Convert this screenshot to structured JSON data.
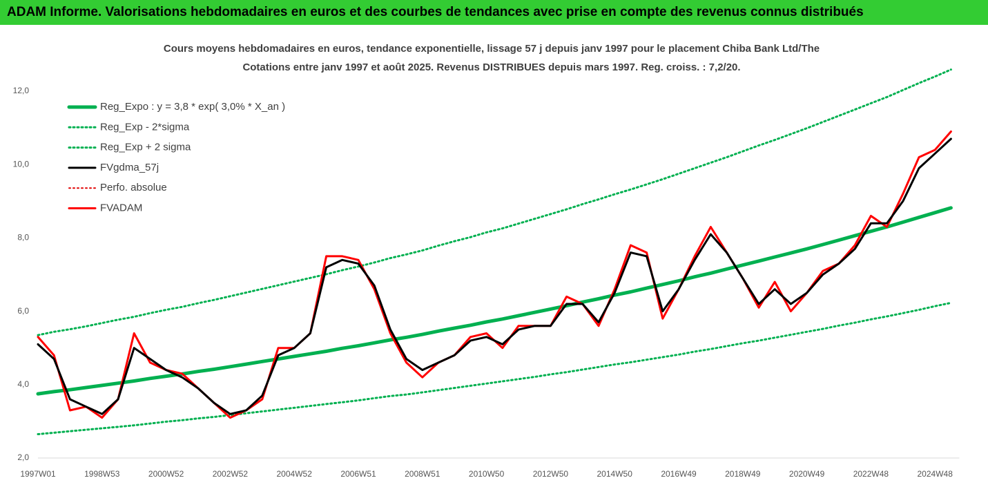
{
  "header": {
    "title": "ADAM Informe. Valorisations hebdomadaires en euros et des courbes de tendances avec prise en compte des revenus connus distribués"
  },
  "chart_data": {
    "type": "line",
    "title": "Cours moyens hebdomadaires en euros, tendance exponentielle, lissage 57 j depuis janv 1997 pour le placement Chiba Bank Ltd/The",
    "subtitle": "Cotations entre janv 1997 et août 2025.  Revenus DISTRIBUES depuis mars 1997. Reg. croiss. : 7,2/20.",
    "categories": [
      "1997W01",
      null,
      null,
      null,
      "1998W53",
      null,
      null,
      null,
      "2000W52",
      null,
      null,
      null,
      "2002W52",
      null,
      null,
      null,
      "2004W52",
      null,
      null,
      null,
      "2006W51",
      null,
      null,
      null,
      "2008W51",
      null,
      null,
      null,
      "2010W50",
      null,
      null,
      null,
      "2012W50",
      null,
      null,
      null,
      "2014W50",
      null,
      null,
      null,
      "2016W49",
      null,
      null,
      null,
      "2018W49",
      null,
      null,
      null,
      "2020W49",
      null,
      null,
      null,
      "2022W48",
      null,
      null,
      null,
      "2024W48",
      null
    ],
    "ylim": [
      2,
      12
    ],
    "yticks": [
      {
        "value": 2,
        "label": "2,0"
      },
      {
        "value": 4,
        "label": "4,0"
      },
      {
        "value": 6,
        "label": "6,0"
      },
      {
        "value": 8,
        "label": "8,0"
      },
      {
        "value": 10,
        "label": "10,0"
      },
      {
        "value": 12,
        "label": "12,0"
      }
    ],
    "grid": false,
    "legend": "upper left",
    "series": [
      {
        "name": "Reg_Expo : y = 3,8 * exp( 3,0% *  X_an )",
        "color": "#00b050",
        "dash": false,
        "width": 5,
        "values": [
          3.75,
          3.81,
          3.86,
          3.92,
          3.98,
          4.04,
          4.1,
          4.17,
          4.23,
          4.29,
          4.36,
          4.42,
          4.49,
          4.56,
          4.63,
          4.7,
          4.77,
          4.84,
          4.91,
          4.99,
          5.06,
          5.14,
          5.22,
          5.29,
          5.37,
          5.46,
          5.54,
          5.62,
          5.71,
          5.79,
          5.88,
          5.97,
          6.06,
          6.15,
          6.25,
          6.34,
          6.44,
          6.53,
          6.63,
          6.73,
          6.83,
          6.94,
          7.04,
          7.15,
          7.26,
          7.37,
          7.48,
          7.59,
          7.7,
          7.82,
          7.94,
          8.06,
          8.18,
          8.3,
          8.43,
          8.56,
          8.69,
          8.82
        ]
      },
      {
        "name": "Reg_Exp - 2*sigma",
        "color": "#00b050",
        "dash": true,
        "width": 3,
        "values": [
          2.65,
          2.69,
          2.73,
          2.77,
          2.81,
          2.85,
          2.89,
          2.94,
          2.99,
          3.03,
          3.08,
          3.12,
          3.17,
          3.22,
          3.27,
          3.32,
          3.37,
          3.42,
          3.47,
          3.52,
          3.57,
          3.63,
          3.69,
          3.73,
          3.79,
          3.85,
          3.91,
          3.97,
          4.03,
          4.09,
          4.15,
          4.21,
          4.28,
          4.34,
          4.41,
          4.48,
          4.55,
          4.61,
          4.68,
          4.75,
          4.82,
          4.9,
          4.97,
          5.05,
          5.13,
          5.2,
          5.28,
          5.36,
          5.44,
          5.52,
          5.61,
          5.69,
          5.78,
          5.86,
          5.95,
          6.04,
          6.14,
          6.23
        ]
      },
      {
        "name": "Reg_Exp + 2 sigma",
        "color": "#00b050",
        "dash": true,
        "width": 3,
        "values": [
          5.35,
          5.44,
          5.51,
          5.59,
          5.68,
          5.77,
          5.85,
          5.95,
          6.04,
          6.12,
          6.22,
          6.31,
          6.41,
          6.51,
          6.61,
          6.71,
          6.81,
          6.91,
          7.01,
          7.12,
          7.22,
          7.33,
          7.45,
          7.55,
          7.66,
          7.79,
          7.91,
          8.02,
          8.15,
          8.26,
          8.39,
          8.52,
          8.65,
          8.78,
          8.92,
          9.05,
          9.19,
          9.32,
          9.46,
          9.6,
          9.75,
          9.9,
          10.05,
          10.2,
          10.36,
          10.52,
          10.67,
          10.83,
          10.99,
          11.16,
          11.33,
          11.5,
          11.67,
          11.84,
          12.03,
          12.22,
          12.4,
          12.59
        ]
      },
      {
        "name": "FVgdma_57j",
        "color": "#000000",
        "dash": false,
        "width": 3,
        "values": [
          5.1,
          4.7,
          3.6,
          3.4,
          3.2,
          3.6,
          5.0,
          4.7,
          4.4,
          4.2,
          3.9,
          3.5,
          3.2,
          3.3,
          3.7,
          4.8,
          5.0,
          5.4,
          7.2,
          7.4,
          7.3,
          6.7,
          5.5,
          4.7,
          4.4,
          4.6,
          4.8,
          5.2,
          5.3,
          5.1,
          5.5,
          5.6,
          5.6,
          6.2,
          6.2,
          5.7,
          6.5,
          7.6,
          7.5,
          6.0,
          6.6,
          7.4,
          8.1,
          7.6,
          6.9,
          6.2,
          6.6,
          6.2,
          6.5,
          7.0,
          7.3,
          7.7,
          8.4,
          8.4,
          9.0,
          9.9,
          10.3,
          10.7
        ]
      },
      {
        "name": "Perfo. absolue",
        "color": "#e00000",
        "dash": true,
        "width": 2,
        "values": [
          null,
          null,
          null,
          null,
          null,
          null,
          null,
          null,
          null,
          null,
          null,
          null,
          null,
          null,
          null,
          null,
          null,
          null,
          null,
          null,
          null,
          null,
          null,
          null,
          null,
          null,
          null,
          null,
          null,
          null,
          null,
          null,
          null,
          null,
          null,
          null,
          null,
          null,
          null,
          null,
          null,
          null,
          null,
          null,
          null,
          null,
          null,
          null,
          null,
          null,
          null,
          null,
          null,
          null,
          null,
          null,
          null,
          null
        ]
      },
      {
        "name": "FVADAM",
        "color": "#ff0000",
        "dash": false,
        "width": 3,
        "values": [
          5.3,
          4.8,
          3.3,
          3.4,
          3.1,
          3.6,
          5.4,
          4.6,
          4.4,
          4.3,
          3.9,
          3.5,
          3.1,
          3.3,
          3.6,
          5.0,
          5.0,
          5.4,
          7.5,
          7.5,
          7.4,
          6.6,
          5.4,
          4.6,
          4.2,
          4.6,
          4.8,
          5.3,
          5.4,
          5.0,
          5.6,
          5.6,
          5.6,
          6.4,
          6.2,
          5.6,
          6.6,
          7.8,
          7.6,
          5.8,
          6.6,
          7.5,
          8.3,
          7.6,
          6.9,
          6.1,
          6.8,
          6.0,
          6.5,
          7.1,
          7.3,
          7.8,
          8.6,
          8.3,
          9.2,
          10.2,
          10.4,
          10.9
        ]
      }
    ]
  }
}
